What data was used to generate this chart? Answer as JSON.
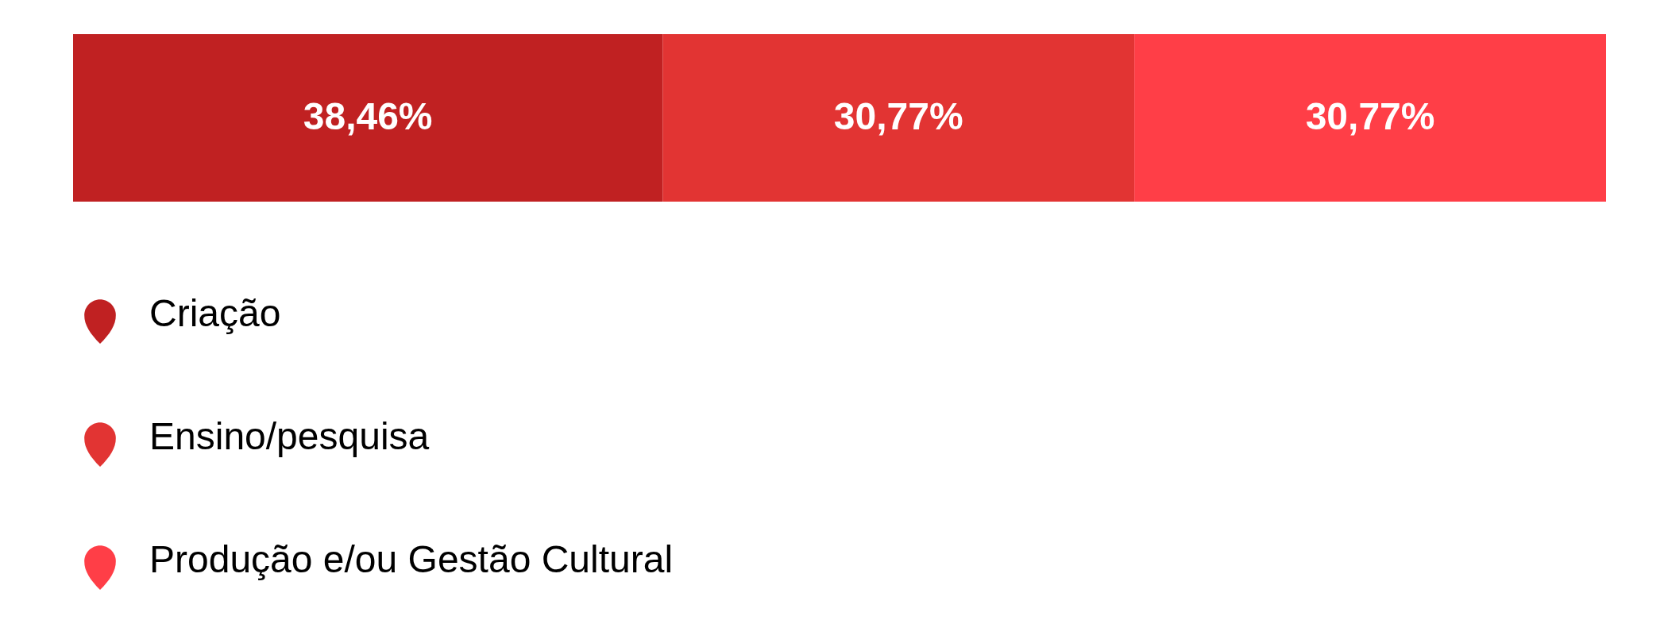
{
  "chart_data": {
    "type": "bar",
    "stacked": true,
    "orientation": "horizontal",
    "legend": "bottom",
    "categories": [
      null
    ],
    "series": [
      {
        "name": "Criação",
        "color": "#c02122",
        "values": [
          38.46
        ],
        "value_labels": [
          "38,46%"
        ]
      },
      {
        "name": "Ensino/pesquisa",
        "color": "#e23433",
        "values": [
          30.77
        ],
        "value_labels": [
          "30,77%"
        ]
      },
      {
        "name": "Produção e/ou Gestão Cultural",
        "color": "#ff3e47",
        "values": [
          30.77
        ],
        "value_labels": [
          "30,77%"
        ]
      }
    ]
  }
}
